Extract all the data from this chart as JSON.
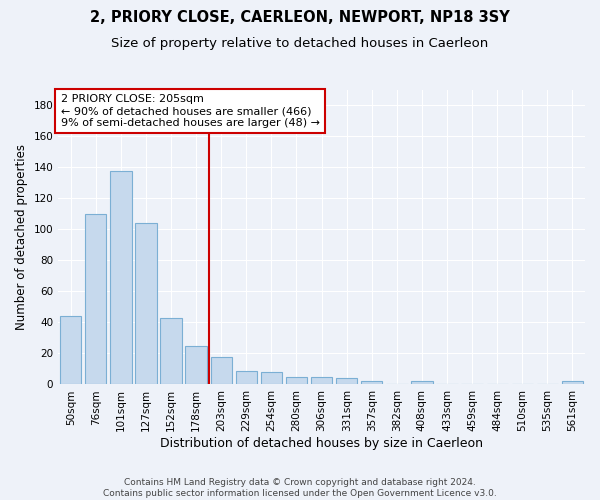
{
  "title": "2, PRIORY CLOSE, CAERLEON, NEWPORT, NP18 3SY",
  "subtitle": "Size of property relative to detached houses in Caerleon",
  "xlabel": "Distribution of detached houses by size in Caerleon",
  "ylabel": "Number of detached properties",
  "categories": [
    "50sqm",
    "76sqm",
    "101sqm",
    "127sqm",
    "152sqm",
    "178sqm",
    "203sqm",
    "229sqm",
    "254sqm",
    "280sqm",
    "306sqm",
    "331sqm",
    "357sqm",
    "382sqm",
    "408sqm",
    "433sqm",
    "459sqm",
    "484sqm",
    "510sqm",
    "535sqm",
    "561sqm"
  ],
  "values": [
    44,
    110,
    138,
    104,
    43,
    25,
    18,
    9,
    8,
    5,
    5,
    4,
    2,
    0,
    2,
    0,
    0,
    0,
    0,
    0,
    2
  ],
  "bar_color": "#c6d9ed",
  "bar_edge_color": "#7bafd4",
  "vline_x_index": 6.0,
  "vline_color": "#cc0000",
  "annotation_text": "2 PRIORY CLOSE: 205sqm\n← 90% of detached houses are smaller (466)\n9% of semi-detached houses are larger (48) →",
  "annotation_box_edge": "#cc0000",
  "annotation_box_face": "#ffffff",
  "ylim": [
    0,
    190
  ],
  "yticks": [
    0,
    20,
    40,
    60,
    80,
    100,
    120,
    140,
    160,
    180
  ],
  "footer": "Contains HM Land Registry data © Crown copyright and database right 2024.\nContains public sector information licensed under the Open Government Licence v3.0.",
  "title_fontsize": 10.5,
  "subtitle_fontsize": 9.5,
  "xlabel_fontsize": 9,
  "ylabel_fontsize": 8.5,
  "tick_fontsize": 7.5,
  "background_color": "#eef2f9",
  "grid_color": "#ffffff"
}
